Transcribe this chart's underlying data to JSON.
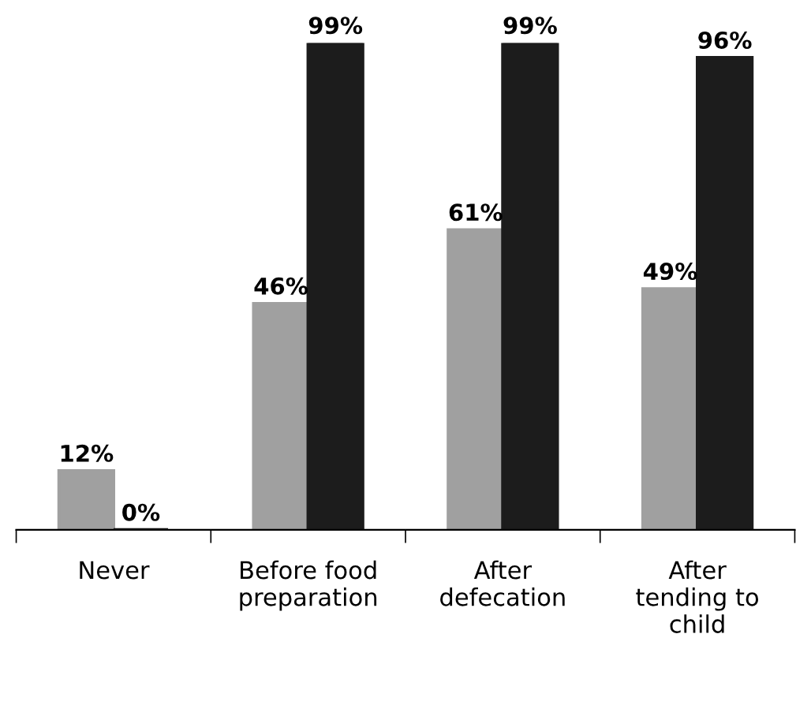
{
  "chart_data": {
    "type": "bar",
    "categories": [
      "Never",
      "Before food\npreparation",
      "After\ndefecation",
      "After\ntending to\nchild"
    ],
    "series": [
      {
        "color": "#a0a0a0",
        "values": [
          12,
          46,
          61,
          49
        ],
        "value_labels": [
          "12%",
          "46%",
          "61%",
          "49%"
        ]
      },
      {
        "color": "#1c1c1c",
        "values": [
          0,
          99,
          99,
          96
        ],
        "value_labels": [
          "0%",
          "99%",
          "99%",
          "96%"
        ]
      }
    ],
    "grid": false,
    "legend": false
  }
}
